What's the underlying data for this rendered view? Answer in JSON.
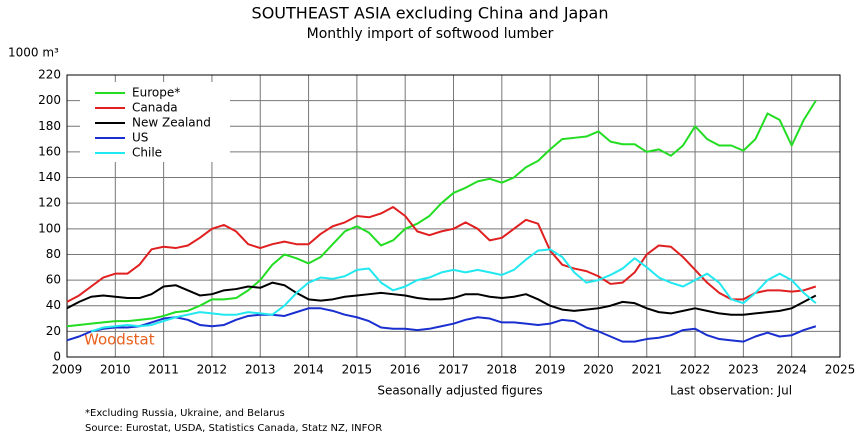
{
  "chart_data": {
    "type": "line",
    "title": "SOUTHEAST ASIA excluding China and Japan",
    "subtitle": "Monthly import of softwood lumber",
    "y_unit": "1000 m³",
    "x_label": "Seasonally adjusted figures",
    "last_observation": "Last observation: Jul",
    "footnote": "*Excluding Russia, Ukraine, and Belarus",
    "source": "Source: Eurostat, USDA, Statistics Canada, Statz NZ, INFOR",
    "watermark": "Woodstat",
    "xlim": [
      2009,
      2025
    ],
    "xticks": [
      2009,
      2010,
      2011,
      2012,
      2013,
      2014,
      2015,
      2016,
      2017,
      2018,
      2019,
      2020,
      2021,
      2022,
      2023,
      2024,
      2025
    ],
    "ylim": [
      0,
      220
    ],
    "yticks": [
      0,
      20,
      40,
      60,
      80,
      100,
      120,
      140,
      160,
      180,
      200,
      220
    ],
    "grid": true,
    "legend": "upper left",
    "x": [
      2009,
      2009.25,
      2009.5,
      2009.75,
      2010,
      2010.25,
      2010.5,
      2010.75,
      2011,
      2011.25,
      2011.5,
      2011.75,
      2012,
      2012.25,
      2012.5,
      2012.75,
      2013,
      2013.25,
      2013.5,
      2013.75,
      2014,
      2014.25,
      2014.5,
      2014.75,
      2015,
      2015.25,
      2015.5,
      2015.75,
      2016,
      2016.25,
      2016.5,
      2016.75,
      2017,
      2017.25,
      2017.5,
      2017.75,
      2018,
      2018.25,
      2018.5,
      2018.75,
      2019,
      2019.25,
      2019.5,
      2019.75,
      2020,
      2020.25,
      2020.5,
      2020.75,
      2021,
      2021.25,
      2021.5,
      2021.75,
      2022,
      2022.25,
      2022.5,
      2022.75,
      2023,
      2023.25,
      2023.5,
      2023.75,
      2024,
      2024.25,
      2024.5
    ],
    "series": [
      {
        "name": "Europe*",
        "color": "#22dd22",
        "values": [
          24,
          25,
          26,
          27,
          28,
          28,
          29,
          30,
          32,
          35,
          36,
          40,
          45,
          45,
          46,
          52,
          60,
          72,
          80,
          77,
          73,
          78,
          88,
          98,
          102,
          97,
          87,
          91,
          100,
          104,
          110,
          120,
          128,
          132,
          137,
          139,
          136,
          140,
          148,
          153,
          162,
          170,
          171,
          172,
          176,
          168,
          166,
          166,
          160,
          162,
          157,
          165,
          180,
          170,
          165,
          165,
          161,
          170,
          190,
          185,
          165,
          185,
          200
        ]
      },
      {
        "name": "Canada",
        "color": "#e02020",
        "values": [
          43,
          48,
          55,
          62,
          65,
          65,
          72,
          84,
          86,
          85,
          87,
          93,
          100,
          103,
          98,
          88,
          85,
          88,
          90,
          88,
          88,
          96,
          102,
          105,
          110,
          109,
          112,
          117,
          110,
          98,
          95,
          98,
          100,
          105,
          100,
          91,
          93,
          100,
          107,
          104,
          83,
          72,
          69,
          67,
          63,
          57,
          58,
          66,
          80,
          87,
          86,
          78,
          68,
          58,
          50,
          45,
          45,
          50,
          52,
          52,
          51,
          52,
          55
        ]
      },
      {
        "name": "New Zealand",
        "color": "#000000",
        "values": [
          38,
          43,
          47,
          48,
          47,
          46,
          46,
          49,
          55,
          56,
          52,
          48,
          49,
          52,
          53,
          55,
          54,
          58,
          56,
          50,
          45,
          44,
          45,
          47,
          48,
          49,
          50,
          49,
          48,
          46,
          45,
          45,
          46,
          49,
          49,
          47,
          46,
          47,
          49,
          45,
          40,
          37,
          36,
          37,
          38,
          40,
          43,
          42,
          38,
          35,
          34,
          36,
          38,
          36,
          34,
          33,
          33,
          34,
          35,
          36,
          38,
          43,
          48
        ]
      },
      {
        "name": "US",
        "color": "#1a2fd0",
        "values": [
          13,
          16,
          20,
          22,
          23,
          23,
          24,
          27,
          30,
          31,
          29,
          25,
          24,
          25,
          29,
          32,
          33,
          33,
          32,
          35,
          38,
          38,
          36,
          33,
          31,
          28,
          23,
          22,
          22,
          21,
          22,
          24,
          26,
          29,
          31,
          30,
          27,
          27,
          26,
          25,
          26,
          29,
          28,
          23,
          20,
          16,
          12,
          12,
          14,
          15,
          17,
          21,
          22,
          17,
          14,
          13,
          12,
          16,
          19,
          16,
          17,
          21,
          24
        ]
      },
      {
        "name": "Chile",
        "color": "#22e8f0",
        "values": [
          null,
          null,
          20,
          23,
          24,
          25,
          24,
          25,
          28,
          31,
          33,
          35,
          34,
          33,
          33,
          35,
          34,
          33,
          40,
          50,
          58,
          62,
          61,
          63,
          68,
          69,
          58,
          52,
          55,
          60,
          62,
          66,
          68,
          66,
          68,
          66,
          64,
          68,
          76,
          83,
          84,
          78,
          66,
          58,
          60,
          64,
          69,
          77,
          70,
          62,
          58,
          55,
          60,
          65,
          58,
          45,
          42,
          50,
          60,
          65,
          60,
          50,
          42
        ]
      }
    ]
  }
}
